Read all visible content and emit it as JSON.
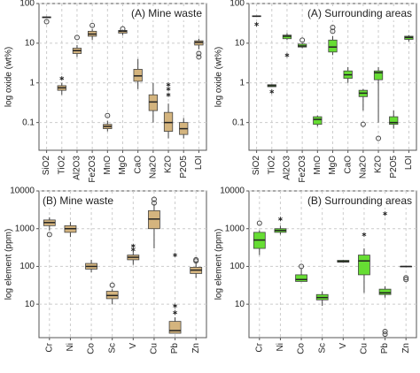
{
  "chart_data": [
    {
      "type": "box",
      "title": "(A) Mine waste",
      "ylabel": "log oxide (wt%)",
      "color": "#d4b47e",
      "log_y": true,
      "grid": true,
      "ylim": [
        0.02,
        100
      ],
      "yticks": [
        0.1,
        1,
        10,
        100
      ],
      "categories": [
        "SiO2",
        "TiO2",
        "Al2O3",
        "Fe2O3",
        "MnO",
        "MgO",
        "CaO",
        "Na2O",
        "K2O",
        "P2O5",
        "LOI"
      ],
      "boxes": [
        {
          "min": 43,
          "q1": 44,
          "median": 45,
          "q3": 46,
          "max": 47,
          "outliers": [
            35
          ],
          "extremes": []
        },
        {
          "min": 0.5,
          "q1": 0.65,
          "median": 0.75,
          "q3": 0.85,
          "max": 1.0,
          "outliers": [],
          "extremes": [
            1.3
          ]
        },
        {
          "min": 4.5,
          "q1": 5.5,
          "median": 6.5,
          "q3": 7.5,
          "max": 9,
          "outliers": [
            14
          ],
          "extremes": []
        },
        {
          "min": 12,
          "q1": 15,
          "median": 17,
          "q3": 20,
          "max": 23,
          "outliers": [
            28
          ],
          "extremes": []
        },
        {
          "min": 0.06,
          "q1": 0.07,
          "median": 0.08,
          "q3": 0.09,
          "max": 0.11,
          "outliers": [
            0.15
          ],
          "extremes": []
        },
        {
          "min": 16,
          "q1": 18,
          "median": 20,
          "q3": 21,
          "max": 22,
          "outliers": [
            23
          ],
          "extremes": []
        },
        {
          "min": 0.7,
          "q1": 1.1,
          "median": 1.5,
          "q3": 2.2,
          "max": 4,
          "outliers": [],
          "extremes": []
        },
        {
          "min": 0.1,
          "q1": 0.2,
          "median": 0.33,
          "q3": 0.5,
          "max": 1.0,
          "outliers": [],
          "extremes": []
        },
        {
          "min": 0.04,
          "q1": 0.06,
          "median": 0.1,
          "q3": 0.18,
          "max": 0.3,
          "outliers": [],
          "extremes": [
            0.5,
            0.7,
            0.9
          ]
        },
        {
          "min": 0.04,
          "q1": 0.05,
          "median": 0.07,
          "q3": 0.1,
          "max": 0.13,
          "outliers": [],
          "extremes": []
        },
        {
          "min": 7,
          "q1": 9,
          "median": 10.5,
          "q3": 11.5,
          "max": 13,
          "outliers": [
            5.5,
            4.5
          ],
          "extremes": []
        }
      ]
    },
    {
      "type": "box",
      "title": "(A) Surrounding areas",
      "ylabel": "log oxide (wt%)",
      "color": "#66dd33",
      "log_y": true,
      "grid": true,
      "ylim": [
        0.02,
        100
      ],
      "yticks": [
        0.1,
        1,
        10,
        100
      ],
      "categories": [
        "SiO2",
        "TiO2",
        "Al2O3",
        "Fe2O3",
        "MnO",
        "MgO",
        "CaO",
        "Na2O",
        "K2O",
        "P2O5",
        "LOI"
      ],
      "boxes": [
        {
          "min": 46,
          "q1": 47,
          "median": 48,
          "q3": 49,
          "max": 50,
          "outliers": [],
          "extremes": [
            30
          ]
        },
        {
          "min": 0.78,
          "q1": 0.8,
          "median": 0.85,
          "q3": 0.9,
          "max": 0.92,
          "outliers": [],
          "extremes": [
            0.6
          ]
        },
        {
          "min": 12,
          "q1": 13,
          "median": 15,
          "q3": 16,
          "max": 18,
          "outliers": [],
          "extremes": [
            5
          ]
        },
        {
          "min": 7.5,
          "q1": 8,
          "median": 8.5,
          "q3": 9.5,
          "max": 10,
          "outliers": [
            12
          ],
          "extremes": []
        },
        {
          "min": 0.08,
          "q1": 0.09,
          "median": 0.12,
          "q3": 0.14,
          "max": 0.15,
          "outliers": [],
          "extremes": []
        },
        {
          "min": 5,
          "q1": 6,
          "median": 8,
          "q3": 12,
          "max": 15,
          "outliers": [
            20,
            25
          ],
          "extremes": []
        },
        {
          "min": 1,
          "q1": 1.3,
          "median": 1.6,
          "q3": 2,
          "max": 2.5,
          "outliers": [],
          "extremes": []
        },
        {
          "min": 0.2,
          "q1": 0.45,
          "median": 0.55,
          "q3": 0.65,
          "max": 0.7,
          "outliers": [
            0.09
          ],
          "extremes": []
        },
        {
          "min": 0.1,
          "q1": 1.2,
          "median": 1.8,
          "q3": 2,
          "max": 2.5,
          "outliers": [
            0.04
          ],
          "extremes": []
        },
        {
          "min": 0.07,
          "q1": 0.09,
          "median": 0.1,
          "q3": 0.14,
          "max": 0.2,
          "outliers": [],
          "extremes": []
        },
        {
          "min": 11,
          "q1": 12.5,
          "median": 14,
          "q3": 15,
          "max": 16,
          "outliers": [],
          "extremes": []
        }
      ]
    },
    {
      "type": "box",
      "title": "(B) Mine waste",
      "ylabel": "log element (ppm)",
      "color": "#d4b47e",
      "log_y": true,
      "grid": true,
      "ylim": [
        1.3,
        10000
      ],
      "yticks": [
        10,
        100,
        1000,
        10000
      ],
      "categories": [
        "Cr",
        "Ni",
        "Co",
        "Sc",
        "V",
        "Cu",
        "Pb",
        "Zn"
      ],
      "boxes": [
        {
          "min": 900,
          "q1": 1200,
          "median": 1450,
          "q3": 1700,
          "max": 2000,
          "outliers": [
            700
          ],
          "extremes": []
        },
        {
          "min": 600,
          "q1": 800,
          "median": 1000,
          "q3": 1200,
          "max": 1500,
          "outliers": [],
          "extremes": []
        },
        {
          "min": 70,
          "q1": 85,
          "median": 100,
          "q3": 120,
          "max": 150,
          "outliers": [],
          "extremes": []
        },
        {
          "min": 10,
          "q1": 14,
          "median": 17,
          "q3": 22,
          "max": 25,
          "outliers": [
            32
          ],
          "extremes": []
        },
        {
          "min": 110,
          "q1": 150,
          "median": 175,
          "q3": 200,
          "max": 250,
          "outliers": [],
          "extremes": [
            280,
            350
          ]
        },
        {
          "min": 300,
          "q1": 1000,
          "median": 1800,
          "q3": 3000,
          "max": 4500,
          "outliers": [
            4800,
            6000
          ],
          "extremes": []
        },
        {
          "min": 1.7,
          "q1": 1.7,
          "median": 2,
          "q3": 3.5,
          "max": 4.5,
          "outliers": [],
          "extremes": [
            6,
            9,
            200
          ]
        },
        {
          "min": 50,
          "q1": 65,
          "median": 80,
          "q3": 95,
          "max": 130,
          "outliers": [
            140,
            150
          ],
          "extremes": []
        }
      ]
    },
    {
      "type": "box",
      "title": "(B) Surrounding areas",
      "ylabel": "log element (ppm)",
      "color": "#66dd33",
      "log_y": true,
      "grid": true,
      "ylim": [
        1.3,
        10000
      ],
      "yticks": [
        10,
        100,
        1000,
        10000
      ],
      "categories": [
        "Cr",
        "Ni",
        "Co",
        "Sc",
        "V",
        "Cu",
        "Pb",
        "Zn"
      ],
      "boxes": [
        {
          "min": 200,
          "q1": 300,
          "median": 500,
          "q3": 800,
          "max": 900,
          "outliers": [
            1400
          ],
          "extremes": []
        },
        {
          "min": 700,
          "q1": 800,
          "median": 900,
          "q3": 1000,
          "max": 1200,
          "outliers": [],
          "extremes": [
            1800
          ]
        },
        {
          "min": 40,
          "q1": 40,
          "median": 45,
          "q3": 60,
          "max": 90,
          "outliers": [
            100
          ],
          "extremes": []
        },
        {
          "min": 9,
          "q1": 13,
          "median": 15,
          "q3": 18,
          "max": 22,
          "outliers": [],
          "extremes": []
        },
        {
          "min": 125,
          "q1": 130,
          "median": 135,
          "q3": 145,
          "max": 150,
          "outliers": [],
          "extremes": []
        },
        {
          "min": 20,
          "q1": 60,
          "median": 140,
          "q3": 200,
          "max": 300,
          "outliers": [],
          "extremes": [
            700
          ]
        },
        {
          "min": 15,
          "q1": 18,
          "median": 20,
          "q3": 25,
          "max": 30,
          "outliers": [
            1.9,
            1.6
          ],
          "extremes": [
            2500
          ]
        },
        {
          "min": 100,
          "q1": 100,
          "median": 100,
          "q3": 100,
          "max": 100,
          "outliers": [
            50,
            45
          ],
          "extremes": []
        }
      ]
    }
  ]
}
